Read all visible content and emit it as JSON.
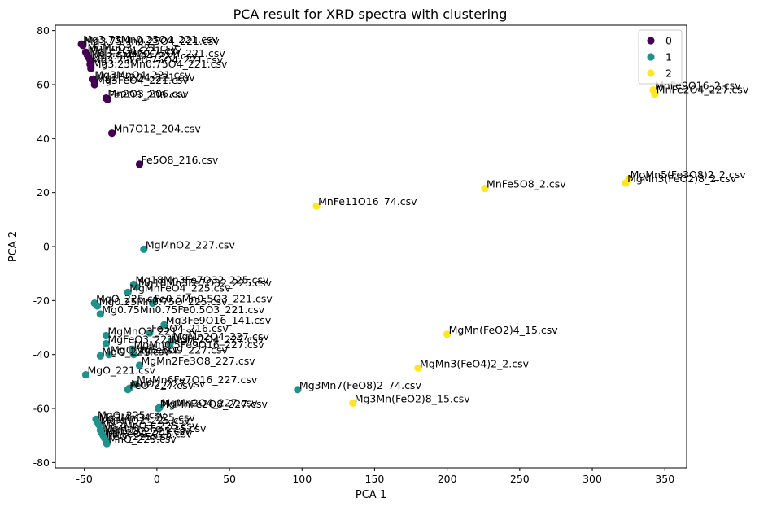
{
  "chart_data": {
    "type": "scatter",
    "title": "PCA result for XRD spectra with clustering",
    "xlabel": "PCA 1",
    "ylabel": "PCA 2",
    "xlim": [
      -70,
      365
    ],
    "ylim": [
      -82,
      82
    ],
    "xticks": [
      -50,
      0,
      50,
      100,
      150,
      200,
      250,
      300,
      350
    ],
    "yticks": [
      -80,
      -60,
      -40,
      -20,
      0,
      20,
      40,
      60,
      80
    ],
    "grid": false,
    "legend_position": "top-right",
    "cluster_colors": {
      "0": "#440154",
      "1": "#21918c",
      "2": "#fde725"
    },
    "legend": [
      {
        "label": "0",
        "cluster": 0
      },
      {
        "label": "1",
        "cluster": 1
      },
      {
        "label": "2",
        "cluster": 2
      }
    ],
    "points": [
      {
        "x": -52,
        "y": 75,
        "cluster": 0,
        "label": "Mg3.75Mn0.25O4_221.csv"
      },
      {
        "x": -51,
        "y": 74.5,
        "cluster": 0,
        "label": "Mg3.75Mn0.25O4_221.csv"
      },
      {
        "x": -49,
        "y": 72,
        "cluster": 0,
        "label": "MgMnO3_221.csv"
      },
      {
        "x": -48,
        "y": 71,
        "cluster": 0,
        "label": "MgFe2O4_221.csv"
      },
      {
        "x": -47,
        "y": 70,
        "cluster": 0,
        "label": "Mg3.25Mn0.75O4_221.csv"
      },
      {
        "x": -46,
        "y": 69,
        "cluster": 0,
        "label": "Mg2.5MnO4_221.csv"
      },
      {
        "x": -46,
        "y": 67.5,
        "cluster": 0,
        "label": "Mg3.25Fe0.75O4_221.csv"
      },
      {
        "x": -45.5,
        "y": 66,
        "cluster": 0,
        "label": "Mg3.25Mn0.75O4_221.csv"
      },
      {
        "x": -44,
        "y": 62,
        "cluster": 0,
        "label": "Mg3MnO4_221.csv"
      },
      {
        "x": -43,
        "y": 61,
        "cluster": 0,
        "label": "Mg2Fe2O4_221.csv"
      },
      {
        "x": -43,
        "y": 60,
        "cluster": 0,
        "label": "Mg3FeO4_221.csv"
      },
      {
        "x": -35,
        "y": 55,
        "cluster": 0,
        "label": "Mn2O3_206.csv"
      },
      {
        "x": -34,
        "y": 54.5,
        "cluster": 0,
        "label": "Fe2O3_206.csv"
      },
      {
        "x": -31,
        "y": 42,
        "cluster": 0,
        "label": "Mn7O12_204.csv"
      },
      {
        "x": -12,
        "y": 30.5,
        "cluster": 0,
        "label": "Fe5O8_216.csv"
      },
      {
        "x": -9,
        "y": -1,
        "cluster": 1,
        "label": "MgMnO2_227.csv"
      },
      {
        "x": -16,
        "y": -14,
        "cluster": 1,
        "label": "Mg18Mn3Fe7O32_225.csv"
      },
      {
        "x": -14,
        "y": -15,
        "cluster": 1,
        "label": "Mg18Mn3Fe7O32_225.csv"
      },
      {
        "x": -20,
        "y": -17,
        "cluster": 1,
        "label": "MgMnFeO4_225.csv"
      },
      {
        "x": -43,
        "y": -21,
        "cluster": 1,
        "label": "MgO_225.csv"
      },
      {
        "x": -41,
        "y": -22,
        "cluster": 1,
        "label": "Mg0.25Mn0.75O_225.csv"
      },
      {
        "x": -3,
        "y": -21,
        "cluster": 1,
        "label": "Fe0.5Mn0.5O3_221.csv"
      },
      {
        "x": -39,
        "y": -25,
        "cluster": 1,
        "label": "Mg0.75Mn0.75Fe0.5O3_221.csv"
      },
      {
        "x": 5,
        "y": -29,
        "cluster": 1,
        "label": "Mg3Fe9O16_141.csv"
      },
      {
        "x": -35,
        "y": -33,
        "cluster": 1,
        "label": "MgMnO3_221.csv"
      },
      {
        "x": -5,
        "y": -32,
        "cluster": 1,
        "label": "Fe3O4_216.csv"
      },
      {
        "x": -35,
        "y": -36,
        "cluster": 1,
        "label": "MgFeO3_221.csv"
      },
      {
        "x": 10,
        "y": -35,
        "cluster": 1,
        "label": "MgMn2O4_227.csv"
      },
      {
        "x": 9,
        "y": -36,
        "cluster": 1,
        "label": "MgFe2O4_227.csv"
      },
      {
        "x": -17,
        "y": -38,
        "cluster": 1,
        "label": "MgMn0.5Fe9O16_227.csv"
      },
      {
        "x": -39,
        "y": -40.5,
        "cluster": 1,
        "label": "MgO_221.csv"
      },
      {
        "x": -33,
        "y": -40,
        "cluster": 1,
        "label": "MgO_225.csv"
      },
      {
        "x": -16,
        "y": -40,
        "cluster": 1,
        "label": "MgFe5O9_227.csv"
      },
      {
        "x": -12,
        "y": -44,
        "cluster": 1,
        "label": "MgMn2Fe3O8_227.csv"
      },
      {
        "x": -49,
        "y": -47.5,
        "cluster": 1,
        "label": "MgO_221.csv"
      },
      {
        "x": -15,
        "y": -51,
        "cluster": 1,
        "label": "MgMn6Fe7O16_227.csv"
      },
      {
        "x": -20,
        "y": -53,
        "cluster": 1,
        "label": "FeO_227.csv"
      },
      {
        "x": -19,
        "y": -52.5,
        "cluster": 1,
        "label": "MnO2_227.csv"
      },
      {
        "x": 97,
        "y": -53,
        "cluster": 1,
        "label": "Mg3Mn7(FeO8)2_74.csv"
      },
      {
        "x": 1,
        "y": -60,
        "cluster": 1,
        "label": "MgMnFe2O8_227.csv"
      },
      {
        "x": 2,
        "y": -59.5,
        "cluster": 1,
        "label": "MgMn2O4_227.csv"
      },
      {
        "x": -42,
        "y": -64,
        "cluster": 1,
        "label": "MgO_225.csv"
      },
      {
        "x": -41,
        "y": -65,
        "cluster": 1,
        "label": "Mg3MnO4_225.csv"
      },
      {
        "x": -40,
        "y": -66,
        "cluster": 1,
        "label": "MgMnO2_225.csv"
      },
      {
        "x": -39,
        "y": -68,
        "cluster": 1,
        "label": "Mg2MnO3_225.csv"
      },
      {
        "x": -38,
        "y": -69,
        "cluster": 1,
        "label": "MgMn0.5Fe_225.csv"
      },
      {
        "x": -37,
        "y": -70,
        "cluster": 1,
        "label": "MgFeO2_225.csv"
      },
      {
        "x": -36,
        "y": -71,
        "cluster": 1,
        "label": "MnFeO2_225.csv"
      },
      {
        "x": -35,
        "y": -72,
        "cluster": 1,
        "label": "FeO_225.csv"
      },
      {
        "x": -34.5,
        "y": -73,
        "cluster": 1,
        "label": "MnO_225.csv"
      },
      {
        "x": 342,
        "y": 58,
        "cluster": 2,
        "label": "MnFe9O16_2.csv"
      },
      {
        "x": 343,
        "y": 56.5,
        "cluster": 2,
        "label": "MnFe2O4_227.csv"
      },
      {
        "x": 325,
        "y": 25,
        "cluster": 2,
        "label": "MgMn5(Fe3O8)2_2.csv"
      },
      {
        "x": 323,
        "y": 23.5,
        "cluster": 2,
        "label": "MgMn3(FeO2)8_2.csv"
      },
      {
        "x": 226,
        "y": 21.5,
        "cluster": 2,
        "label": "MnFe5O8_2.csv"
      },
      {
        "x": 110,
        "y": 15,
        "cluster": 2,
        "label": "MnFe11O16_74.csv"
      },
      {
        "x": 200,
        "y": -32.5,
        "cluster": 2,
        "label": "MgMn(FeO2)4_15.csv"
      },
      {
        "x": 180,
        "y": -45,
        "cluster": 2,
        "label": "MgMn3(FeO4)2_2.csv"
      },
      {
        "x": 135,
        "y": -58,
        "cluster": 2,
        "label": "Mg3Mn(FeO2)8_15.csv"
      }
    ]
  }
}
